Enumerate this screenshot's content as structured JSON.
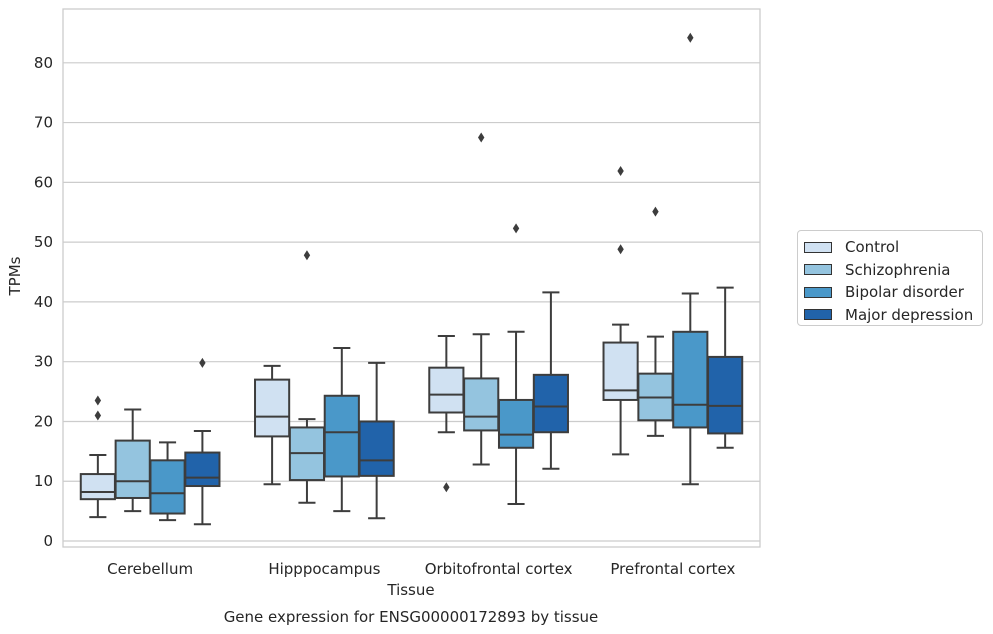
{
  "chart_data": {
    "type": "box",
    "caption": "Gene expression for ENSG00000172893 by tissue",
    "xlabel": "Tissue",
    "ylabel": "TPMs",
    "ylim": [
      -1,
      89
    ],
    "yticks": [
      0,
      10,
      20,
      30,
      40,
      50,
      60,
      70,
      80
    ],
    "grid": "horizontal",
    "legend_position": "right",
    "categories": [
      "Cerebellum",
      "Hipppocampus",
      "Orbitofrontal cortex",
      "Prefrontal cortex"
    ],
    "series": [
      {
        "name": "Control",
        "color": "#d0e1f2",
        "boxes": [
          {
            "min": 4.0,
            "q1": 7.0,
            "median": 8.2,
            "q3": 11.2,
            "max": 14.4,
            "outliers": [
              21.0,
              23.5
            ]
          },
          {
            "min": 9.5,
            "q1": 17.5,
            "median": 20.8,
            "q3": 27.0,
            "max": 29.3,
            "outliers": []
          },
          {
            "min": 18.2,
            "q1": 21.5,
            "median": 24.5,
            "q3": 29.0,
            "max": 34.3,
            "outliers": [
              9.0
            ]
          },
          {
            "min": 14.5,
            "q1": 23.6,
            "median": 25.2,
            "q3": 33.2,
            "max": 36.2,
            "outliers": [
              48.8,
              61.9
            ]
          }
        ]
      },
      {
        "name": "Schizophrenia",
        "color": "#94c4df",
        "boxes": [
          {
            "min": 5.0,
            "q1": 7.2,
            "median": 10.0,
            "q3": 16.8,
            "max": 22.0,
            "outliers": []
          },
          {
            "min": 6.4,
            "q1": 10.2,
            "median": 14.7,
            "q3": 19.0,
            "max": 20.4,
            "outliers": [
              47.8
            ]
          },
          {
            "min": 12.8,
            "q1": 18.5,
            "median": 20.8,
            "q3": 27.2,
            "max": 34.6,
            "outliers": [
              67.5
            ]
          },
          {
            "min": 17.6,
            "q1": 20.2,
            "median": 24.0,
            "q3": 28.0,
            "max": 34.2,
            "outliers": [
              55.1
            ]
          }
        ]
      },
      {
        "name": "Bipolar disorder",
        "color": "#4a98c9",
        "boxes": [
          {
            "min": 3.5,
            "q1": 4.6,
            "median": 8.0,
            "q3": 13.5,
            "max": 16.5,
            "outliers": []
          },
          {
            "min": 5.0,
            "q1": 10.8,
            "median": 18.2,
            "q3": 24.3,
            "max": 32.3,
            "outliers": []
          },
          {
            "min": 6.2,
            "q1": 15.6,
            "median": 17.8,
            "q3": 23.6,
            "max": 35.0,
            "outliers": [
              52.3
            ]
          },
          {
            "min": 9.5,
            "q1": 19.0,
            "median": 22.8,
            "q3": 35.0,
            "max": 41.4,
            "outliers": [
              84.2
            ]
          }
        ]
      },
      {
        "name": "Major depression",
        "color": "#2163aa",
        "boxes": [
          {
            "min": 2.8,
            "q1": 9.2,
            "median": 10.6,
            "q3": 14.8,
            "max": 18.4,
            "outliers": [
              29.8
            ]
          },
          {
            "min": 3.8,
            "q1": 10.9,
            "median": 13.5,
            "q3": 20.0,
            "max": 29.8,
            "outliers": []
          },
          {
            "min": 12.1,
            "q1": 18.2,
            "median": 22.5,
            "q3": 27.8,
            "max": 41.6,
            "outliers": []
          },
          {
            "min": 15.6,
            "q1": 18.0,
            "median": 22.6,
            "q3": 30.8,
            "max": 42.4,
            "outliers": []
          }
        ]
      }
    ]
  }
}
